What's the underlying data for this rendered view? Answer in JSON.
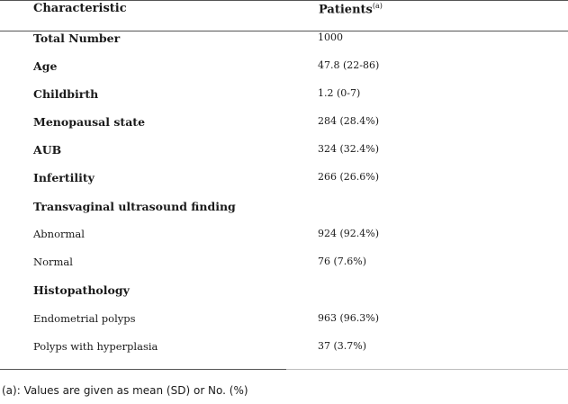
{
  "table": {
    "header": {
      "characteristic": "Characteristic",
      "patients": "Patients",
      "patients_note": "(a)"
    },
    "rows": [
      {
        "label": "Total Number",
        "value": "1000",
        "style": "bold"
      },
      {
        "label": "Age",
        "value": "47.8 (22-86)",
        "style": "bold"
      },
      {
        "label": "Childbirth",
        "value": "1.2 (0-7)",
        "style": "bold"
      },
      {
        "label": "Menopausal state",
        "value": "284 (28.4%)",
        "style": "bold"
      },
      {
        "label": "AUB",
        "value": "324 (32.4%)",
        "style": "bold"
      },
      {
        "label": "Infertility",
        "value": "266 (26.6%)",
        "style": "bold"
      },
      {
        "label": "Transvaginal ultrasound finding",
        "value": "",
        "style": "bold"
      },
      {
        "label": "Abnormal",
        "value": "924 (92.4%)",
        "style": "plain"
      },
      {
        "label": "Normal",
        "value": "76 (7.6%)",
        "style": "plain"
      },
      {
        "label": "Histopathology",
        "value": "",
        "style": "bold"
      },
      {
        "label": "Endometrial polyps",
        "value": "963 (96.3%)",
        "style": "plain"
      },
      {
        "label": "Polyps with hyperplasia",
        "value": "37 (3.7%)",
        "style": "plain"
      }
    ]
  },
  "footnote": "(a): Values are given as mean (SD) or No. (%)"
}
